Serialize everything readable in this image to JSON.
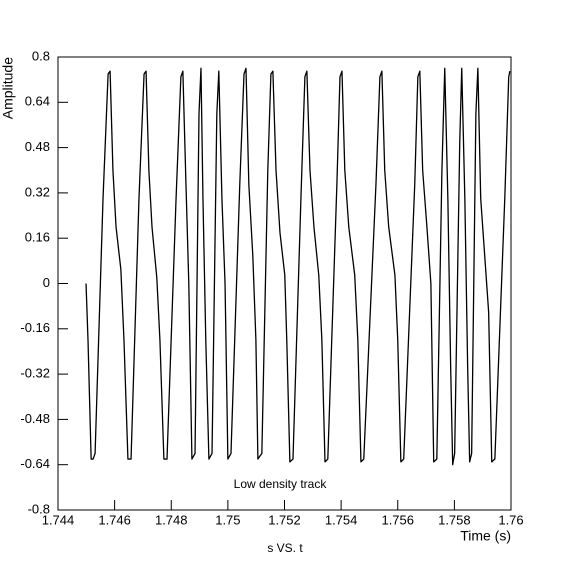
{
  "chart_data": {
    "type": "line",
    "title": "s VS. t",
    "xlabel": "Time (s)",
    "ylabel": "Amplitude",
    "annotation": "Low density track",
    "color": "#000000",
    "xlim": [
      1.744,
      1.76
    ],
    "xticks": [
      1.744,
      1.746,
      1.748,
      1.75,
      1.752,
      1.754,
      1.756,
      1.758,
      1.76
    ],
    "ylim": [
      -0.8,
      0.8
    ],
    "yticks": [
      -0.8,
      -0.64,
      -0.48,
      -0.32,
      -0.16,
      0,
      0.16,
      0.32,
      0.48,
      0.64,
      0.8
    ],
    "x": [
      1.74499,
      1.74506,
      1.74517,
      1.74524,
      1.74531,
      1.74559,
      1.74577,
      1.74584,
      1.74594,
      1.74605,
      1.74622,
      1.74633,
      1.74647,
      1.74658,
      1.74686,
      1.74704,
      1.74711,
      1.74721,
      1.74732,
      1.74749,
      1.7476,
      1.74774,
      1.74785,
      1.74817,
      1.74834,
      1.74841,
      1.74852,
      1.74862,
      1.74873,
      1.74884,
      1.74898,
      1.74905,
      1.74912,
      1.74922,
      1.74933,
      1.74944,
      1.74961,
      1.74968,
      1.74979,
      1.7499,
      1.75,
      1.75011,
      1.75042,
      1.75057,
      1.75064,
      1.75074,
      1.75088,
      1.75099,
      1.75106,
      1.7512,
      1.75141,
      1.75152,
      1.75159,
      1.7517,
      1.75184,
      1.75201,
      1.75208,
      1.75219,
      1.7523,
      1.75258,
      1.75272,
      1.75279,
      1.7529,
      1.75304,
      1.75321,
      1.75332,
      1.75343,
      1.75353,
      1.75385,
      1.75396,
      1.75403,
      1.75413,
      1.75427,
      1.75448,
      1.75459,
      1.7547,
      1.7548,
      1.75523,
      1.75537,
      1.75544,
      1.75554,
      1.75568,
      1.7559,
      1.756,
      1.75611,
      1.75621,
      1.7566,
      1.75671,
      1.75678,
      1.75688,
      1.75703,
      1.75717,
      1.75727,
      1.75738,
      1.75756,
      1.75766,
      1.75777,
      1.75787,
      1.75794,
      1.75801,
      1.75819,
      1.75826,
      1.75837,
      1.75847,
      1.75854,
      1.75861,
      1.75876,
      1.75883,
      1.75893,
      1.75907,
      1.75921,
      1.75932,
      1.75943,
      1.75978,
      1.75992,
      1.75996
    ],
    "values": [
      0.0,
      -0.2,
      -0.62,
      -0.62,
      -0.6,
      0.3,
      0.74,
      0.75,
      0.4,
      0.2,
      0.05,
      -0.2,
      -0.62,
      -0.62,
      0.3,
      0.74,
      0.75,
      0.4,
      0.2,
      0.02,
      -0.2,
      -0.62,
      -0.62,
      0.3,
      0.73,
      0.75,
      0.35,
      0.0,
      -0.62,
      -0.6,
      0.6,
      0.76,
      0.3,
      -0.2,
      -0.62,
      -0.6,
      0.6,
      0.75,
      0.3,
      0.0,
      -0.62,
      -0.6,
      0.35,
      0.74,
      0.76,
      0.35,
      0.1,
      -0.2,
      -0.62,
      -0.6,
      0.4,
      0.74,
      0.75,
      0.4,
      0.18,
      0.03,
      -0.2,
      -0.63,
      -0.62,
      0.3,
      0.73,
      0.75,
      0.4,
      0.2,
      0.03,
      -0.2,
      -0.63,
      -0.62,
      0.35,
      0.73,
      0.75,
      0.4,
      0.2,
      0.03,
      -0.2,
      -0.63,
      -0.62,
      0.35,
      0.73,
      0.75,
      0.4,
      0.2,
      0.03,
      -0.2,
      -0.63,
      -0.62,
      0.35,
      0.73,
      0.75,
      0.4,
      0.2,
      0.0,
      -0.63,
      -0.62,
      0.4,
      0.76,
      0.3,
      -0.3,
      -0.64,
      -0.6,
      0.5,
      0.76,
      0.3,
      -0.3,
      -0.63,
      -0.6,
      0.6,
      0.76,
      0.3,
      0.1,
      -0.1,
      -0.63,
      -0.62,
      0.3,
      0.73,
      0.75
    ]
  }
}
